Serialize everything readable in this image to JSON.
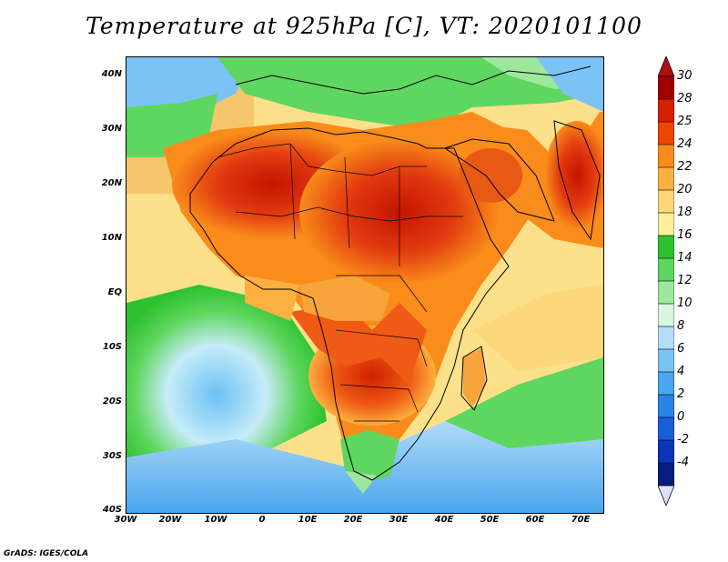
{
  "title": "Temperature at 925hPa [C], VT: 2020101100",
  "credit": "GrADS: IGES/COLA",
  "lat_labels": [
    "40N",
    "30N",
    "20N",
    "10N",
    "EQ",
    "10S",
    "20S",
    "30S",
    "40S"
  ],
  "lon_labels": [
    "30W",
    "20W",
    "10W",
    "0",
    "10E",
    "20E",
    "30E",
    "40E",
    "50E",
    "60E",
    "70E"
  ],
  "colorbar": {
    "labels": [
      "30",
      "28",
      "25",
      "24",
      "22",
      "20",
      "18",
      "16",
      "14",
      "12",
      "10",
      "8",
      "6",
      "4",
      "2",
      "0",
      "-2",
      "-4"
    ],
    "colors": [
      "#a00000",
      "#d62000",
      "#ee4400",
      "#f98c1a",
      "#fdb042",
      "#fdd87a",
      "#ffef9a",
      "#2ec22e",
      "#5fd65f",
      "#9de89d",
      "#d9f6e0",
      "#b4ddf7",
      "#7cc3f5",
      "#4aa6ee",
      "#2a82e6",
      "#1860d8",
      "#0c34b8",
      "#051d80"
    ],
    "top_arrow_color": "#b01010",
    "bottom_arrow_color": "#e0e0f8"
  },
  "colors": {
    "ocean_cool": "#4db0f0",
    "ocean_warm": "#fde08a",
    "land_hot": "#e23a10",
    "land_very_hot": "#c81800",
    "land_warm": "#f98c1a",
    "land_mild": "#2ec22e",
    "mediterranean": "#5fd65f"
  }
}
